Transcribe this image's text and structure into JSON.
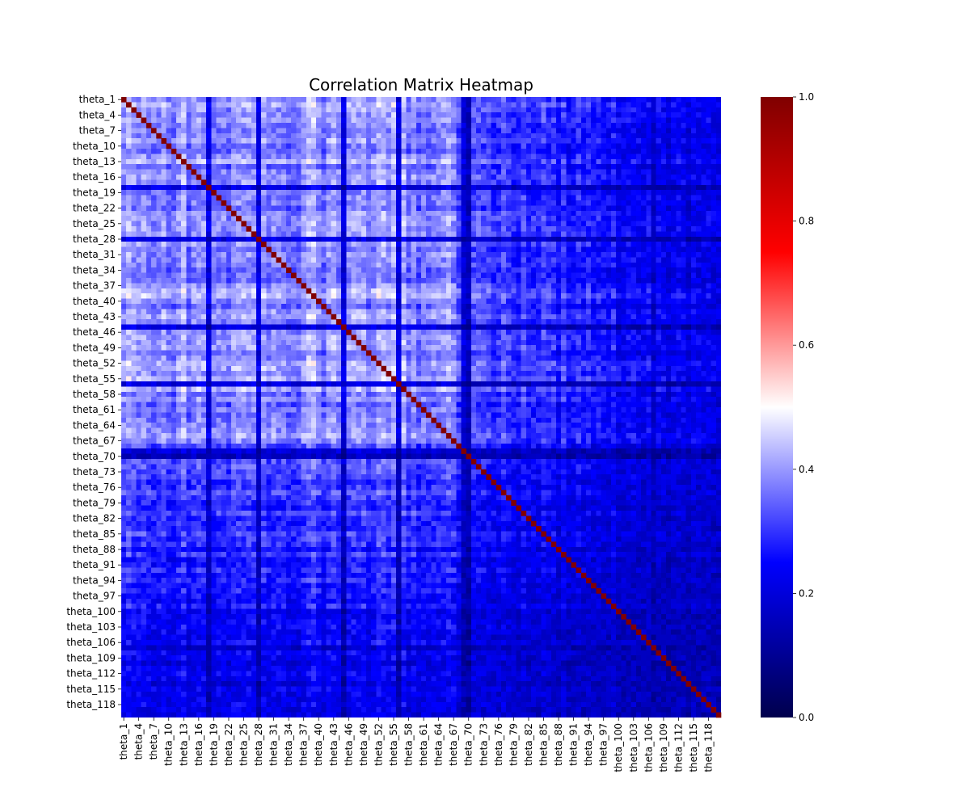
{
  "chart_data": {
    "type": "heatmap",
    "title": "Correlation Matrix Heatmap",
    "variables_prefix": "theta_",
    "n_variables": 120,
    "x_tick_labels": [
      "theta_1",
      "theta_4",
      "theta_7",
      "theta_10",
      "theta_13",
      "theta_16",
      "theta_19",
      "theta_22",
      "theta_25",
      "theta_28",
      "theta_31",
      "theta_34",
      "theta_37",
      "theta_40",
      "theta_43",
      "theta_46",
      "theta_49",
      "theta_52",
      "theta_55",
      "theta_58",
      "theta_61",
      "theta_64",
      "theta_67",
      "theta_70",
      "theta_73",
      "theta_76",
      "theta_79",
      "theta_82",
      "theta_85",
      "theta_88",
      "theta_91",
      "theta_94",
      "theta_97",
      "theta_100",
      "theta_103",
      "theta_106",
      "theta_109",
      "theta_112",
      "theta_115",
      "theta_118"
    ],
    "y_tick_labels": [
      "theta_1",
      "theta_4",
      "theta_7",
      "theta_10",
      "theta_13",
      "theta_16",
      "theta_19",
      "theta_22",
      "theta_25",
      "theta_28",
      "theta_31",
      "theta_34",
      "theta_37",
      "theta_40",
      "theta_43",
      "theta_46",
      "theta_49",
      "theta_52",
      "theta_55",
      "theta_58",
      "theta_61",
      "theta_64",
      "theta_67",
      "theta_70",
      "theta_73",
      "theta_76",
      "theta_79",
      "theta_82",
      "theta_85",
      "theta_88",
      "theta_91",
      "theta_94",
      "theta_97",
      "theta_100",
      "theta_103",
      "theta_106",
      "theta_109",
      "theta_112",
      "theta_115",
      "theta_118"
    ],
    "tick_step": 3,
    "colorscale": "seismic",
    "colorscale_stops": [
      "#00004c",
      "#0000ff",
      "#ffffff",
      "#ff0000",
      "#800000"
    ],
    "vmin": 0.0,
    "vmax": 1.0,
    "colorbar_ticks": [
      "0.0",
      "0.2",
      "0.4",
      "0.6",
      "0.8",
      "1.0"
    ],
    "diagonal_value": 1.0,
    "typical_offdiagonal_range": [
      0.05,
      0.48
    ],
    "high_correlation_block": "theta_1 to theta_67",
    "low_correlation_rows": [
      "theta_18",
      "theta_28",
      "theta_45",
      "theta_56",
      "theta_69",
      "theta_70",
      "theta_107"
    ]
  }
}
